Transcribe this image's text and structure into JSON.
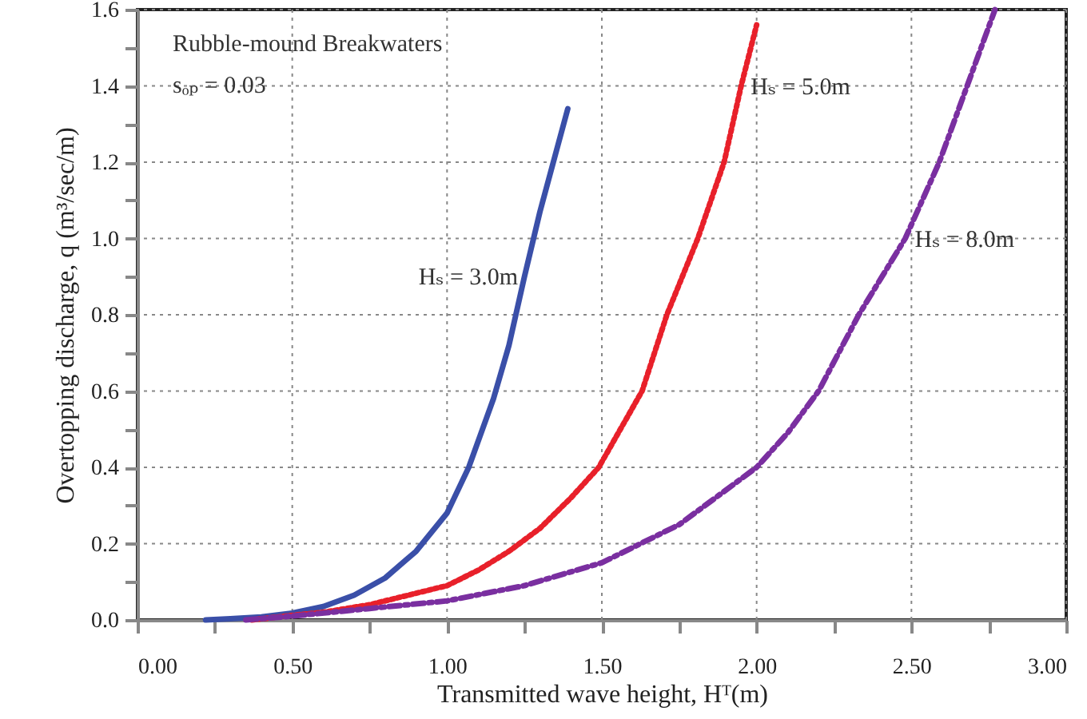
{
  "chart_data": {
    "type": "line",
    "xlabel": "Transmitted wave height, Hᵀ(m)",
    "ylabel": "Overtopping discharge, q (m³/sec/m)",
    "xlim": [
      0,
      3
    ],
    "ylim": [
      0,
      1.6
    ],
    "xticks": [
      {
        "value": 0,
        "label": "0.00"
      },
      {
        "value": 0.25,
        "label": null
      },
      {
        "value": 0.5,
        "label": "0.50"
      },
      {
        "value": 0.75,
        "label": null
      },
      {
        "value": 1,
        "label": "1.00"
      },
      {
        "value": 1.25,
        "label": null
      },
      {
        "value": 1.5,
        "label": "1.50"
      },
      {
        "value": 1.75,
        "label": null
      },
      {
        "value": 2,
        "label": "2.00"
      },
      {
        "value": 2.25,
        "label": null
      },
      {
        "value": 2.5,
        "label": "2.50"
      },
      {
        "value": 2.75,
        "label": null
      },
      {
        "value": 3,
        "label": "3.00"
      }
    ],
    "yticks": [
      {
        "value": 0,
        "label": "0.0"
      },
      {
        "value": 0.1,
        "label": null
      },
      {
        "value": 0.2,
        "label": "0.2"
      },
      {
        "value": 0.3,
        "label": null
      },
      {
        "value": 0.4,
        "label": "0.4"
      },
      {
        "value": 0.5,
        "label": null
      },
      {
        "value": 0.6,
        "label": "0.6"
      },
      {
        "value": 0.7,
        "label": null
      },
      {
        "value": 0.8,
        "label": "0.8"
      },
      {
        "value": 0.9,
        "label": null
      },
      {
        "value": 1,
        "label": "1.0"
      },
      {
        "value": 1.1,
        "label": null
      },
      {
        "value": 1.2,
        "label": "1.2"
      },
      {
        "value": 1.3,
        "label": null
      },
      {
        "value": 1.4,
        "label": "1.4"
      },
      {
        "value": 1.5,
        "label": null
      },
      {
        "value": 1.6,
        "label": "1.6"
      }
    ],
    "grid": true,
    "series": [
      {
        "color": "#3a4fa8",
        "line_style": "solid",
        "x": [
          0.22,
          0.3,
          0.4,
          0.5,
          0.6,
          0.7,
          0.8,
          0.9,
          1.0,
          1.07,
          1.15,
          1.2,
          1.25,
          1.3,
          1.35,
          1.39
        ],
        "values": [
          0,
          0.003,
          0.008,
          0.018,
          0.035,
          0.065,
          0.11,
          0.18,
          0.28,
          0.4,
          0.58,
          0.72,
          0.9,
          1.07,
          1.22,
          1.34
        ]
      },
      {
        "color": "#e8202a",
        "line_style": "dotted",
        "x": [
          0.37,
          0.5,
          0.6,
          0.75,
          0.9,
          1.0,
          1.1,
          1.2,
          1.3,
          1.4,
          1.49,
          1.56,
          1.63,
          1.71,
          1.81,
          1.895,
          1.95,
          2.0
        ],
        "values": [
          0,
          0.012,
          0.02,
          0.04,
          0.07,
          0.09,
          0.13,
          0.18,
          0.24,
          0.32,
          0.4,
          0.5,
          0.6,
          0.8,
          1.0,
          1.2,
          1.4,
          1.56
        ]
      },
      {
        "color": "#7a2fa0",
        "line_style": "dashed",
        "x": [
          0.35,
          0.5,
          0.75,
          1.0,
          1.25,
          1.5,
          1.75,
          2.0,
          2.1,
          2.2,
          2.33,
          2.48,
          2.59,
          2.68,
          2.77
        ],
        "values": [
          0,
          0.01,
          0.03,
          0.05,
          0.09,
          0.15,
          0.25,
          0.4,
          0.49,
          0.6,
          0.8,
          1.0,
          1.2,
          1.4,
          1.6
        ]
      }
    ],
    "annotations": [
      "Rubble-mound Breakwaters",
      "sₒₚ = 0.03",
      {
        "text": "Hₛ = 3.0m",
        "x": 1.25,
        "y": 0.9
      },
      {
        "text": "Hₛ = 5.0m",
        "x": 1.95,
        "y": 1.4
      },
      {
        "text": "Hₛ = 8.0m",
        "x": 2.48,
        "y": 1.0
      }
    ]
  }
}
